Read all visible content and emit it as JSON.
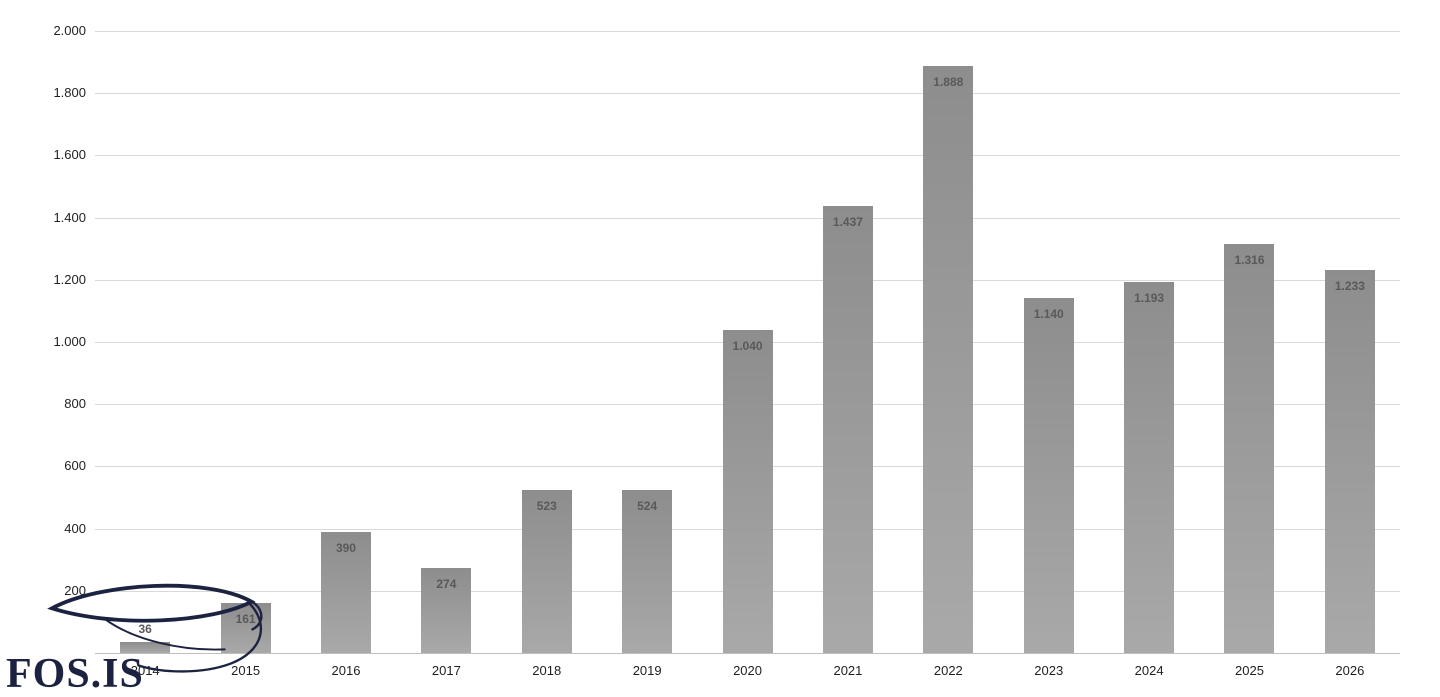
{
  "chart_data": {
    "type": "bar",
    "title": "",
    "xlabel": "",
    "ylabel": "",
    "categories": [
      "2014",
      "2015",
      "2016",
      "2017",
      "2018",
      "2019",
      "2020",
      "2021",
      "2022",
      "2023",
      "2024",
      "2025",
      "2026"
    ],
    "values": [
      36,
      161,
      390,
      274,
      523,
      524,
      1040,
      1437,
      1888,
      1140,
      1193,
      1316,
      1233
    ],
    "value_labels": [
      "36",
      "161",
      "390",
      "274",
      "523",
      "524",
      "1.040",
      "1.437",
      "1.888",
      "1.140",
      "1.193",
      "1.316",
      "1.233"
    ],
    "ylim": [
      0,
      2000
    ],
    "y_tick_values": [
      200,
      400,
      600,
      800,
      1000,
      1200,
      1400,
      1600,
      1800,
      2000
    ],
    "y_tick_labels": [
      "200",
      "400",
      "600",
      "800",
      "1.000",
      "1.200",
      "1.400",
      "1.600",
      "1.800",
      "2.000"
    ],
    "grid": true,
    "legend": "none"
  },
  "logo": {
    "text": "FOS.IS"
  },
  "colors": {
    "bar_top": "#8d8d8d",
    "bar_bottom": "#a9a9a9",
    "value_label": "#595959",
    "axis_label": "#1f1f1f",
    "gridline": "#d9d9d9",
    "axis_line": "#bfbfbf",
    "logo": "#1c2340",
    "background": "#ffffff"
  }
}
